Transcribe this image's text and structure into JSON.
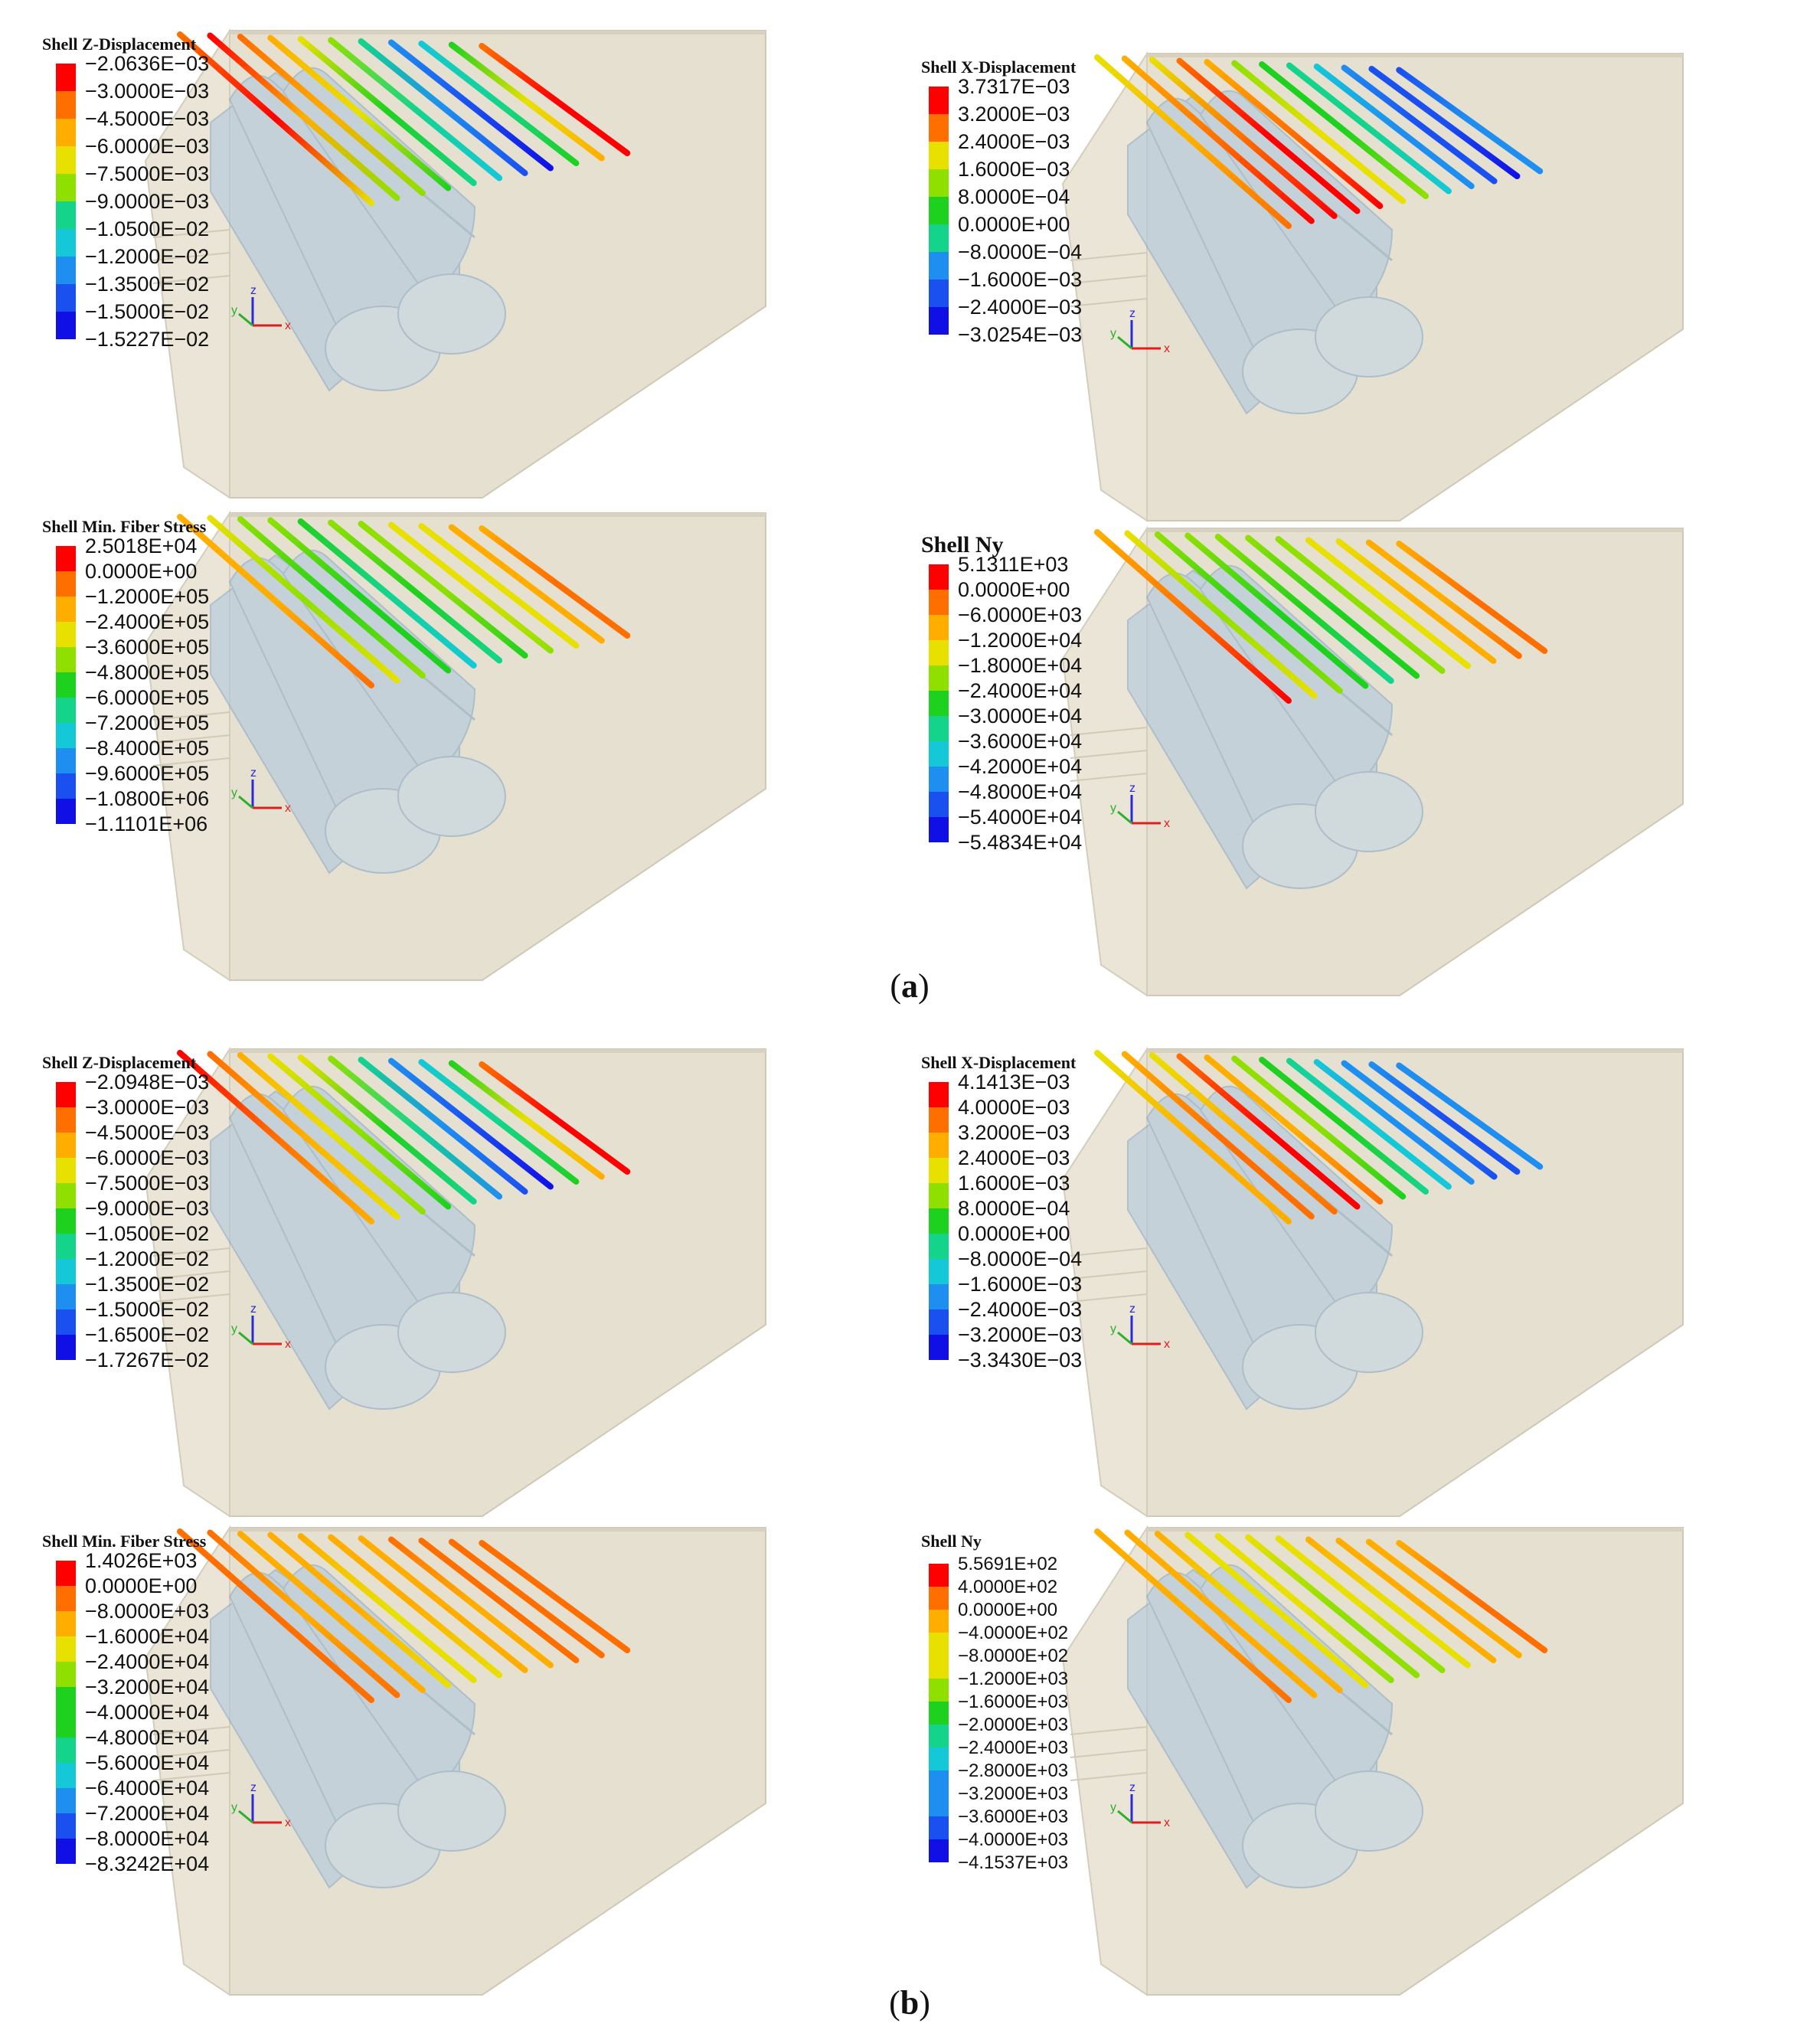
{
  "colors": {
    "colormap": [
      "#ff0000",
      "#ff6f00",
      "#ffae00",
      "#e8e000",
      "#8fe000",
      "#1fd11f",
      "#14d48c",
      "#14c8d8",
      "#1e8ff0",
      "#1a50f0",
      "#1010e6"
    ],
    "soil_block": "#e6e0d0",
    "tunnel_shell": "#a9c6df",
    "axis_x": "#e01e1e",
    "axis_y": "#2ab02a",
    "axis_z": "#2a2ad8"
  },
  "captions": {
    "a": "a",
    "b": "b"
  },
  "axis_labels": {
    "x": "x",
    "y": "y",
    "z": "z"
  },
  "panels": [
    {
      "id": "a-z-displacement",
      "legend_title": "Shell Z-Displacement",
      "labels": [
        "−2.0636E−03",
        "−3.0000E−03",
        "−4.5000E−03",
        "−6.0000E−03",
        "−7.5000E−03",
        "−9.0000E−03",
        "−1.0500E−02",
        "−1.2000E−02",
        "−1.3500E−02",
        "−1.5000E−02",
        "−1.5227E−02"
      ],
      "line_colors": [
        [
          1,
          0,
          3
        ],
        [
          0,
          2,
          4
        ],
        [
          1,
          2,
          4
        ],
        [
          2,
          3,
          5
        ],
        [
          3,
          5,
          6
        ],
        [
          4,
          6,
          7
        ],
        [
          6,
          8,
          9
        ],
        [
          8,
          9,
          10
        ],
        [
          7,
          6,
          5
        ],
        [
          5,
          3,
          2
        ],
        [
          1,
          0,
          0
        ]
      ]
    },
    {
      "id": "a-x-displacement",
      "legend_title": "Shell X-Displacement",
      "labels": [
        "3.7317E−03",
        "3.2000E−03",
        "2.4000E−03",
        "1.6000E−03",
        "8.0000E−04",
        "0.0000E+00",
        "−8.0000E−04",
        "−1.6000E−03",
        "−2.4000E−03",
        "−3.0254E−03"
      ],
      "line_colors": [
        [
          3,
          2,
          1
        ],
        [
          2,
          1,
          0
        ],
        [
          3,
          1,
          0
        ],
        [
          1,
          0,
          0
        ],
        [
          2,
          1,
          0
        ],
        [
          4,
          3,
          3
        ],
        [
          5,
          5,
          4
        ],
        [
          6,
          6,
          7
        ],
        [
          7,
          8,
          8
        ],
        [
          8,
          9,
          9
        ],
        [
          9,
          9,
          10
        ],
        [
          9,
          8,
          8
        ]
      ]
    },
    {
      "id": "a-min-fiber-stress",
      "legend_title": "Shell Min. Fiber Stress",
      "labels": [
        "2.5018E+04",
        "0.0000E+00",
        "−1.2000E+05",
        "−2.4000E+05",
        "−3.6000E+05",
        "−4.8000E+05",
        "−6.0000E+05",
        "−7.2000E+05",
        "−8.4000E+05",
        "−9.6000E+05",
        "−1.0800E+06",
        "−1.1101E+06"
      ],
      "line_colors": [
        [
          2,
          2,
          1
        ],
        [
          3,
          4,
          3
        ],
        [
          4,
          5,
          4
        ],
        [
          4,
          5,
          5
        ],
        [
          5,
          6,
          7
        ],
        [
          4,
          5,
          6
        ],
        [
          4,
          4,
          5
        ],
        [
          3,
          3,
          4
        ],
        [
          3,
          3,
          3
        ],
        [
          2,
          2,
          2
        ],
        [
          2,
          1,
          1
        ]
      ]
    },
    {
      "id": "a-ny",
      "legend_title": "Shell Ny",
      "labels": [
        "5.1311E+03",
        "0.0000E+00",
        "−6.0000E+03",
        "−1.2000E+04",
        "−1.8000E+04",
        "−2.4000E+04",
        "−3.0000E+04",
        "−3.6000E+04",
        "−4.2000E+04",
        "−4.8000E+04",
        "−5.4000E+04",
        "−5.4834E+04"
      ],
      "line_colors": [
        [
          2,
          1,
          0
        ],
        [
          3,
          4,
          3
        ],
        [
          4,
          5,
          4
        ],
        [
          4,
          5,
          5
        ],
        [
          4,
          5,
          6
        ],
        [
          4,
          5,
          5
        ],
        [
          4,
          4,
          4
        ],
        [
          3,
          3,
          3
        ],
        [
          3,
          2,
          2
        ],
        [
          2,
          2,
          1
        ],
        [
          2,
          1,
          1
        ]
      ]
    },
    {
      "id": "b-z-displacement",
      "legend_title": "Shell Z-Displacement",
      "labels": [
        "−2.0948E−03",
        "−3.0000E−03",
        "−4.5000E−03",
        "−6.0000E−03",
        "−7.5000E−03",
        "−9.0000E−03",
        "−1.0500E−02",
        "−1.2000E−02",
        "−1.3500E−02",
        "−1.5000E−02",
        "−1.6500E−02",
        "−1.7267E−02"
      ],
      "line_colors": [
        [
          0,
          1,
          2
        ],
        [
          1,
          2,
          3
        ],
        [
          2,
          3,
          4
        ],
        [
          3,
          4,
          5
        ],
        [
          3,
          5,
          6
        ],
        [
          4,
          6,
          8
        ],
        [
          6,
          8,
          9
        ],
        [
          8,
          9,
          10
        ],
        [
          7,
          6,
          5
        ],
        [
          5,
          3,
          2
        ],
        [
          1,
          0,
          0
        ]
      ]
    },
    {
      "id": "b-x-displacement",
      "legend_title": "Shell X-Displacement",
      "labels": [
        "4.1413E−03",
        "4.0000E−03",
        "3.2000E−03",
        "2.4000E−03",
        "1.6000E−03",
        "8.0000E−04",
        "0.0000E+00",
        "−8.0000E−04",
        "−1.6000E−03",
        "−2.4000E−03",
        "−3.2000E−03",
        "−3.3430E−03"
      ],
      "line_colors": [
        [
          3,
          2,
          2
        ],
        [
          2,
          1,
          1
        ],
        [
          3,
          2,
          1
        ],
        [
          1,
          0,
          0
        ],
        [
          2,
          2,
          1
        ],
        [
          4,
          4,
          5
        ],
        [
          5,
          5,
          6
        ],
        [
          6,
          7,
          7
        ],
        [
          7,
          8,
          8
        ],
        [
          8,
          8,
          9
        ],
        [
          8,
          9,
          9
        ],
        [
          8,
          8,
          8
        ]
      ]
    },
    {
      "id": "b-min-fiber-stress",
      "legend_title": "Shell Min. Fiber Stress",
      "labels": [
        "1.4026E+03",
        "0.0000E+00",
        "−8.0000E+03",
        "−1.6000E+04",
        "−2.4000E+04",
        "−3.2000E+04",
        "−4.0000E+04",
        "−4.8000E+04",
        "−5.6000E+04",
        "−6.4000E+04",
        "−7.2000E+04",
        "−8.0000E+04",
        "−8.3242E+04"
      ],
      "line_colors": [
        [
          1,
          1,
          1
        ],
        [
          1,
          2,
          1
        ],
        [
          2,
          2,
          2
        ],
        [
          2,
          2,
          3
        ],
        [
          2,
          3,
          3
        ],
        [
          2,
          2,
          3
        ],
        [
          2,
          2,
          2
        ],
        [
          1,
          2,
          2
        ],
        [
          1,
          1,
          1
        ],
        [
          1,
          1,
          1
        ],
        [
          1,
          1,
          1
        ]
      ]
    },
    {
      "id": "b-ny",
      "legend_title": "Shell Ny",
      "labels": [
        "5.5691E+02",
        "4.0000E+02",
        "0.0000E+00",
        "−4.0000E+02",
        "−8.0000E+02",
        "−1.2000E+03",
        "−1.6000E+03",
        "−2.0000E+03",
        "−2.4000E+03",
        "−2.8000E+03",
        "−3.2000E+03",
        "−3.6000E+03",
        "−4.0000E+03",
        "−4.1537E+03"
      ],
      "line_colors": [
        [
          2,
          2,
          1
        ],
        [
          2,
          2,
          2
        ],
        [
          2,
          3,
          2
        ],
        [
          3,
          3,
          3
        ],
        [
          3,
          3,
          4
        ],
        [
          3,
          4,
          4
        ],
        [
          3,
          3,
          4
        ],
        [
          2,
          3,
          3
        ],
        [
          2,
          2,
          2
        ],
        [
          2,
          2,
          2
        ],
        [
          2,
          1,
          1
        ]
      ]
    }
  ]
}
